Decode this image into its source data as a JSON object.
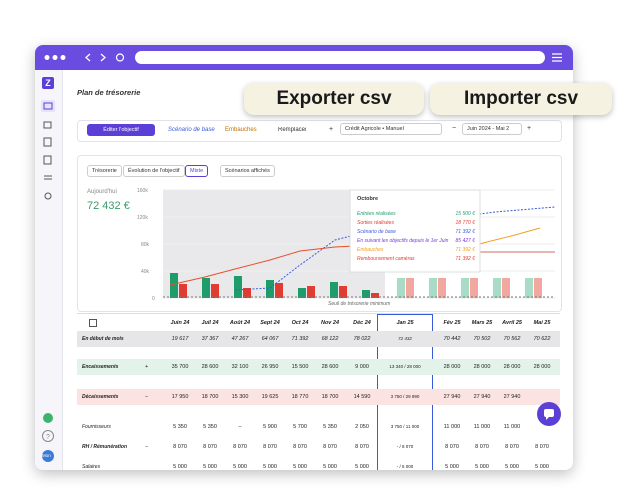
{
  "header": {
    "title": "Plan de trésorerie"
  },
  "toolbar": {
    "edit_button": "Éditer l'objectif",
    "scenarios": [
      "Scénario de base",
      "Embauches",
      "Remplacem"
    ],
    "add": "+",
    "account": "Crédit Agricole • Manuel",
    "period": "Juin 2024 - Mai 2",
    "minus": "−",
    "plus": "+"
  },
  "actions": {
    "export": "Exporter csv",
    "import": "Importer csv"
  },
  "chart_panel": {
    "tabs": [
      "Trésorerie",
      "Évolution de l'objectif",
      "Mixte"
    ],
    "scenarios_button": "Scénarios affichés",
    "today_label": "Aujourd'hui",
    "today_value": "72 432 €",
    "y_labels": [
      "160k",
      "120k",
      "80k",
      "40k",
      "0"
    ],
    "threshold_label": "Seuil de trésorerie minimum",
    "tooltip": {
      "title": "Octobre",
      "rows": [
        {
          "label": "Entrées réalisées",
          "value": "15 500 €",
          "color": "#1e9d6b"
        },
        {
          "label": "Sorties réalisées",
          "value": "18 770 €",
          "color": "#e03c31"
        },
        {
          "label": "Scénario de base",
          "value": "71 392 €",
          "color": "#3a5bd9"
        },
        {
          "label": "En suivant les objectifs depuis le 1er Juin",
          "value": "85 427 €",
          "color": "#7a3fd6"
        },
        {
          "label": "Embauches",
          "value": "71 392 €",
          "color": "#f0a020"
        },
        {
          "label": "Remboursement caméras",
          "value": "71 392 €",
          "color": "#e03c31"
        }
      ]
    }
  },
  "table": {
    "columns": [
      "Juin 24",
      "Juil 24",
      "Août 24",
      "Sept 24",
      "Oct 24",
      "Nov 24",
      "Déc 24",
      "Jan 25",
      "Fév 25",
      "Mars 25",
      "Avril 25",
      "Mai 25"
    ],
    "rows": [
      {
        "label": "En début de mois",
        "sign": null,
        "cells": [
          "19 617",
          "37 367",
          "47 267",
          "64 067",
          "71 392",
          "68 122",
          "78 022",
          "72 432",
          "70 442",
          "70 502",
          "70 562",
          "70 622"
        ]
      },
      {
        "label": "Encaissements",
        "sign": "+",
        "cells": [
          "35 700",
          "28 600",
          "32 100",
          "26 950",
          "15 500",
          "28 600",
          "9 000",
          "13 340 / 28 000",
          "28 000",
          "28 000",
          "28 000",
          "28 000"
        ]
      },
      {
        "label": "Décaissements",
        "sign": "−",
        "cells": [
          "17 950",
          "18 700",
          "15 300",
          "19 625",
          "18 770",
          "18 700",
          "14 590",
          "3 750 / 29 990",
          "27 940",
          "27 940",
          "27 940",
          null
        ]
      },
      {
        "label": "Fournisseurs",
        "sign": null,
        "cells": [
          "5 350",
          "5 350",
          "–",
          "5 900",
          "5 700",
          "5 350",
          "2 050",
          "3 750 / 11 000",
          "11 000",
          "11 000",
          "11 000",
          null
        ]
      },
      {
        "label": "RH / Rémunération",
        "sign": "−",
        "cells": [
          "8 070",
          "8 070",
          "8 070",
          "8 070",
          "8 070",
          "8 070",
          "8 070",
          "- / 8 070",
          "8 070",
          "8 070",
          "8 070",
          "8 070"
        ]
      },
      {
        "label": "Salaires",
        "sign": null,
        "cells": [
          "5 000",
          "5 000",
          "5 000",
          "5 000",
          "5 000",
          "5 000",
          "5 000",
          "- / 5 000",
          "5 000",
          "5 000",
          "5 000",
          "5 000"
        ]
      }
    ]
  },
  "sidebar": {
    "avatar": "Mon"
  }
}
